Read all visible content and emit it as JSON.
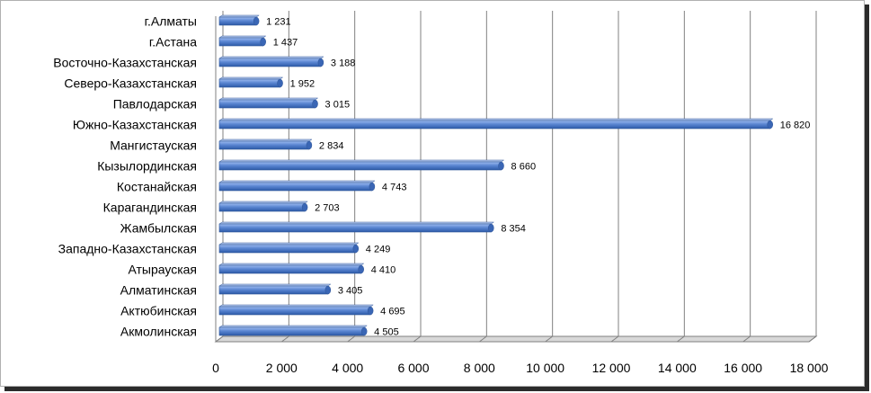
{
  "chart_data": {
    "type": "bar",
    "orientation": "horizontal",
    "categories": [
      "г.Алматы",
      "г.Астана",
      "Восточно-Казахстанская",
      "Северо-Казахстанская",
      "Павлодарская",
      "Южно-Казахстанская",
      "Мангистауская",
      "Кызылординская",
      "Костанайская",
      "Карагандинская",
      "Жамбылская",
      "Западно-Казахстанская",
      "Атырауская",
      "Алматинская",
      "Актюбинская",
      "Акмолинская"
    ],
    "values": [
      1231,
      1437,
      3188,
      1952,
      3015,
      16820,
      2834,
      8660,
      4743,
      2703,
      8354,
      4249,
      4410,
      3405,
      4695,
      4505
    ],
    "data_labels": [
      "1 231",
      "1 437",
      "3 188",
      "1 952",
      "3 015",
      "16 820",
      "2 834",
      "8 660",
      "4 743",
      "2 703",
      "8 354",
      "4 249",
      "4 410",
      "3 405",
      "4 695",
      "4 505"
    ],
    "x_ticks": [
      0,
      2000,
      4000,
      6000,
      8000,
      10000,
      12000,
      14000,
      16000,
      18000
    ],
    "x_tick_labels": [
      "0",
      "2 000",
      "4 000",
      "6 000",
      "8 000",
      "10 000",
      "12 000",
      "14 000",
      "16 000",
      "18 000"
    ],
    "xlim": [
      0,
      18000
    ],
    "title": "",
    "xlabel": "",
    "ylabel": "",
    "grid": "vertical",
    "legend": "none",
    "bar_color": "#4a76c2",
    "bar_edge_color": "#2f5597",
    "grid_color": "#808080"
  }
}
